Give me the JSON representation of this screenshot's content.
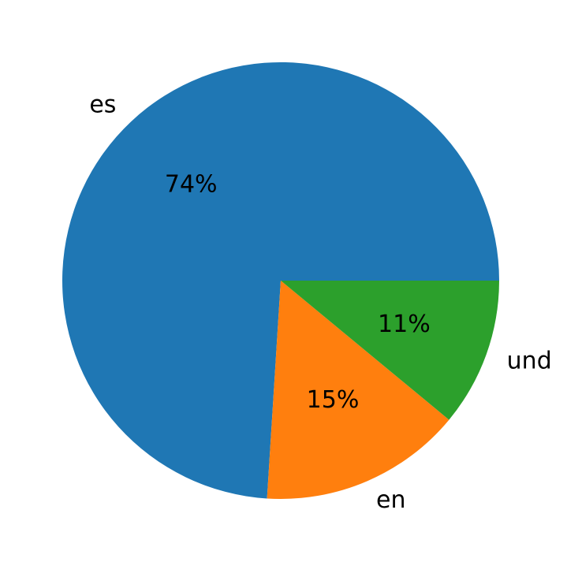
{
  "chart_data": {
    "type": "pie",
    "categories": [
      "es",
      "en",
      "und"
    ],
    "values": [
      74,
      15,
      11
    ],
    "value_labels": [
      "74%",
      "15%",
      "11%"
    ],
    "colors": [
      "#1f77b4",
      "#ff7f0e",
      "#2ca02c"
    ]
  }
}
